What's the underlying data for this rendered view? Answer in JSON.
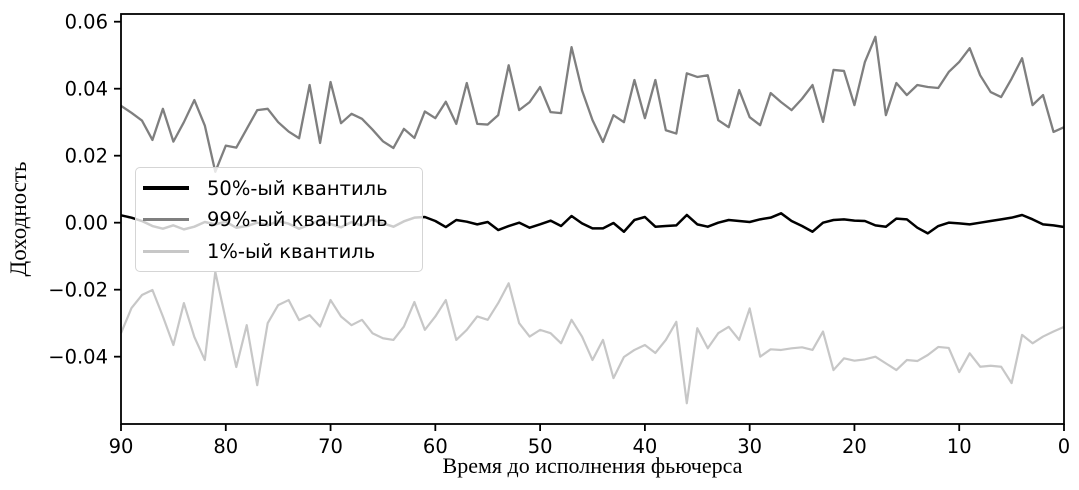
{
  "page": {
    "background": "#ffffff"
  },
  "chart_data": {
    "type": "line",
    "title": "",
    "xlabel": "Время до исполнения фьючерса",
    "ylabel": "Доходность",
    "xlim": [
      90,
      0
    ],
    "ylim": [
      -0.0601,
      0.0623
    ],
    "grid": false,
    "x_start": 90,
    "x_step": -1,
    "xticks": [
      90,
      80,
      70,
      60,
      50,
      40,
      30,
      20,
      10,
      0
    ],
    "yticks": [
      0.06,
      0.04,
      0.02,
      0.0,
      -0.02,
      -0.04
    ],
    "ytick_labels": [
      "0.06",
      "0.04",
      "0.02",
      "0.00",
      "−0.02",
      "−0.04"
    ],
    "legend": {
      "position": "center left",
      "frame": true
    },
    "series": [
      {
        "id": "q50",
        "name": "50%-ый квантиль",
        "color": "#000000",
        "width": 2.5,
        "values": [
          0.0022,
          0.0015,
          0.0005,
          -0.001,
          -0.0018,
          -0.0008,
          -0.002,
          -0.0012,
          0.0002,
          -0.0005,
          0.0003,
          -0.0015,
          -0.001,
          0.0,
          -0.0008,
          0.0005,
          -0.0003,
          -0.0018,
          -0.0006,
          0.0008,
          -0.0004,
          -0.0014,
          0.0002,
          -0.0009,
          0.001,
          -0.0002,
          -0.0012,
          0.0004,
          0.0015,
          0.0017,
          0.0005,
          -0.0013,
          0.0008,
          0.0003,
          -0.0005,
          0.0002,
          -0.0022,
          -0.001,
          0.0,
          -0.0015,
          -0.0005,
          0.0006,
          -0.001,
          0.002,
          -0.0002,
          -0.0017,
          -0.0017,
          -0.0001,
          -0.0027,
          0.0008,
          0.0017,
          -0.0012,
          -0.001,
          -0.0008,
          0.0023,
          -0.0005,
          -0.0012,
          0.0,
          0.0008,
          0.0005,
          0.0002,
          0.001,
          0.0015,
          0.0028,
          0.0005,
          -0.001,
          -0.0027,
          0.0,
          0.0008,
          0.001,
          0.0006,
          0.0005,
          -0.0008,
          -0.0012,
          0.0012,
          0.001,
          -0.0015,
          -0.0032,
          -0.001,
          0.0,
          -0.0002,
          -0.0005,
          0.0,
          0.0005,
          0.001,
          0.0015,
          0.0023,
          0.001,
          -0.0005,
          -0.0008,
          -0.0013
        ]
      },
      {
        "id": "q99",
        "name": "99%-ый квантиль",
        "color": "#7f7f7f",
        "width": 2.3,
        "values": [
          0.0349,
          0.0328,
          0.0305,
          0.0247,
          0.034,
          0.0242,
          0.03,
          0.0366,
          0.029,
          0.0152,
          0.023,
          0.0224,
          0.028,
          0.0336,
          0.034,
          0.03,
          0.0272,
          0.0252,
          0.0411,
          0.0238,
          0.042,
          0.0297,
          0.0325,
          0.031,
          0.0278,
          0.0243,
          0.0223,
          0.028,
          0.0253,
          0.0332,
          0.0312,
          0.0361,
          0.0295,
          0.0417,
          0.0295,
          0.0293,
          0.0321,
          0.047,
          0.0336,
          0.036,
          0.0405,
          0.033,
          0.0327,
          0.0524,
          0.0395,
          0.0306,
          0.0241,
          0.0321,
          0.03,
          0.0426,
          0.0312,
          0.0426,
          0.0276,
          0.0266,
          0.0446,
          0.0435,
          0.044,
          0.0306,
          0.0285,
          0.0396,
          0.0315,
          0.0291,
          0.0387,
          0.036,
          0.0336,
          0.037,
          0.0411,
          0.0301,
          0.0456,
          0.0453,
          0.0351,
          0.048,
          0.0555,
          0.0321,
          0.0417,
          0.0381,
          0.0411,
          0.0405,
          0.0402,
          0.045,
          0.048,
          0.0521,
          0.044,
          0.039,
          0.0375,
          0.043,
          0.0491,
          0.0351,
          0.0381,
          0.0271,
          0.0285
        ]
      },
      {
        "id": "q1",
        "name": "1%-ый квантиль",
        "color": "#c7c7c7",
        "width": 2.2,
        "values": [
          -0.033,
          -0.0255,
          -0.0216,
          -0.0201,
          -0.028,
          -0.0365,
          -0.024,
          -0.0341,
          -0.041,
          -0.0147,
          -0.029,
          -0.0431,
          -0.0306,
          -0.0485,
          -0.03,
          -0.0246,
          -0.0231,
          -0.0291,
          -0.0276,
          -0.031,
          -0.0231,
          -0.028,
          -0.0306,
          -0.029,
          -0.033,
          -0.0345,
          -0.035,
          -0.031,
          -0.0237,
          -0.032,
          -0.028,
          -0.0231,
          -0.035,
          -0.032,
          -0.028,
          -0.029,
          -0.024,
          -0.0181,
          -0.03,
          -0.034,
          -0.032,
          -0.033,
          -0.036,
          -0.029,
          -0.034,
          -0.041,
          -0.035,
          -0.0464,
          -0.0401,
          -0.038,
          -0.0365,
          -0.0389,
          -0.035,
          -0.0296,
          -0.0539,
          -0.0315,
          -0.0375,
          -0.033,
          -0.0311,
          -0.035,
          -0.0256,
          -0.04,
          -0.0378,
          -0.038,
          -0.0375,
          -0.0372,
          -0.038,
          -0.0325,
          -0.044,
          -0.0405,
          -0.0412,
          -0.0408,
          -0.04,
          -0.042,
          -0.044,
          -0.041,
          -0.0413,
          -0.0395,
          -0.0371,
          -0.0374,
          -0.0446,
          -0.039,
          -0.043,
          -0.0427,
          -0.043,
          -0.0479,
          -0.0335,
          -0.036,
          -0.034,
          -0.0325,
          -0.0311
        ]
      }
    ]
  }
}
